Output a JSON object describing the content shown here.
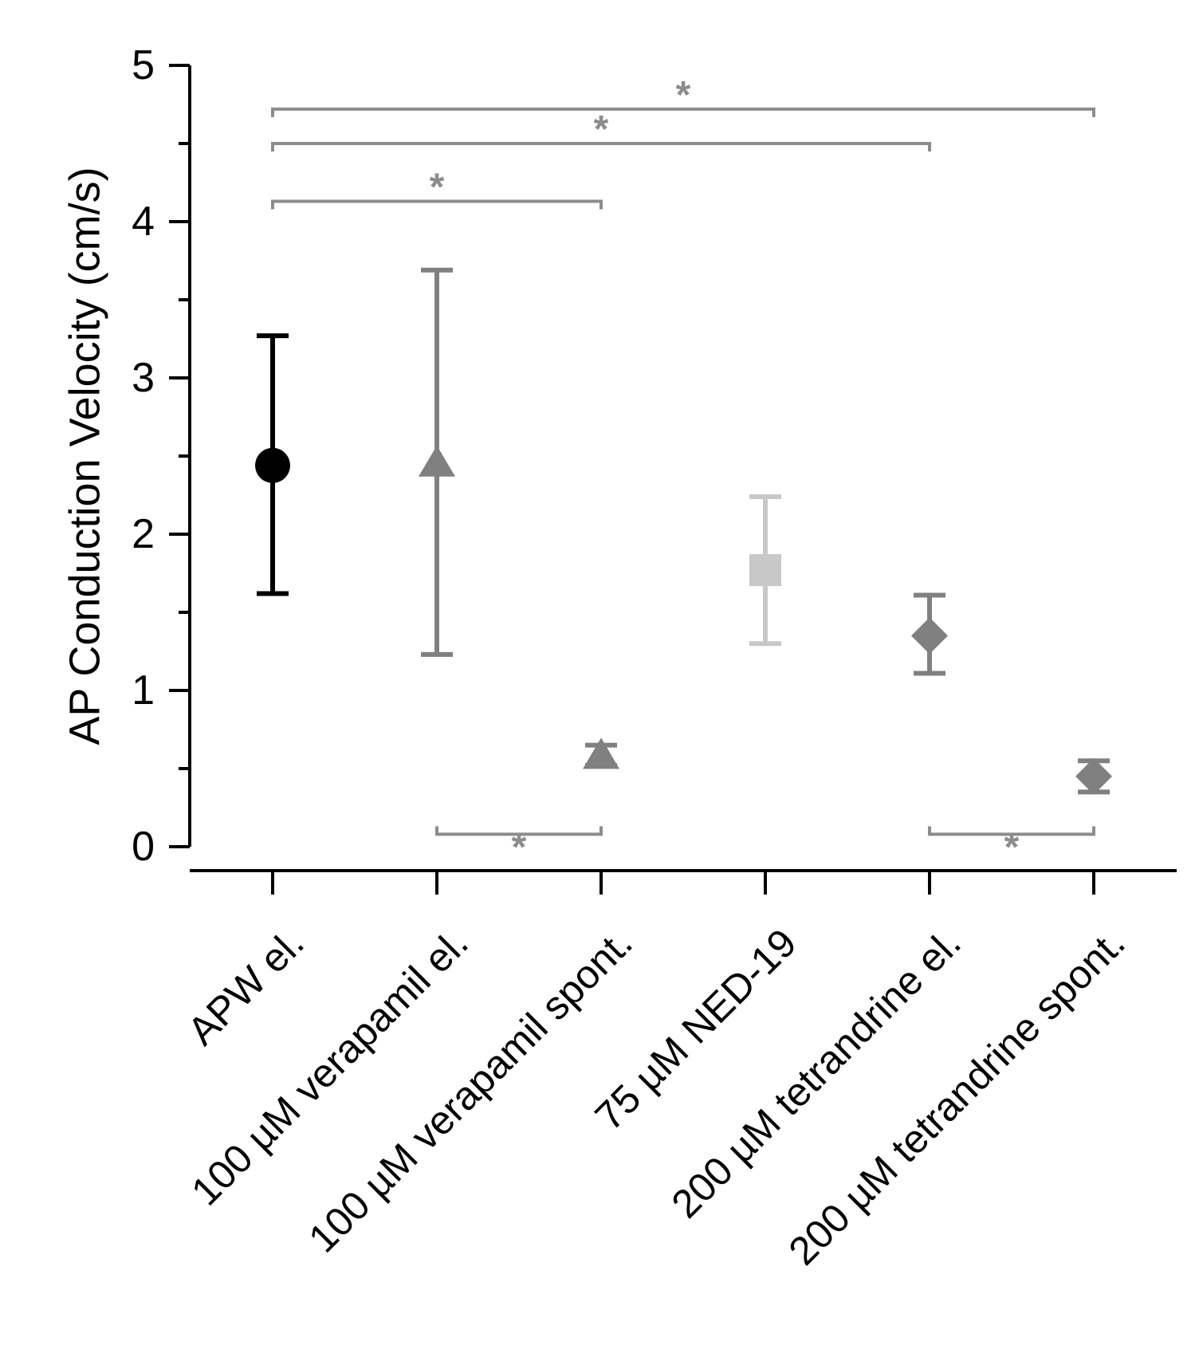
{
  "chart_data": {
    "type": "scatter",
    "title": "",
    "xlabel": "",
    "ylabel": "AP Conduction Velocity (cm/s)",
    "ylim": [
      0,
      5
    ],
    "yticks": [
      "0",
      "1",
      "2",
      "3",
      "4",
      "5"
    ],
    "grid": false,
    "legend": "none",
    "categories": [
      "APW el.",
      "100 µM verapamil el.",
      "100 µM verapamil spont.",
      "75 µM NED-19",
      "200 µM tetrandrine el.",
      "200 µM tetrandrine spont."
    ],
    "series": [
      {
        "name": "APW el.",
        "marker": "circle",
        "color": "#000000",
        "mean": 2.44,
        "lower": 1.62,
        "upper": 3.27
      },
      {
        "name": "100 µM verapamil el.",
        "marker": "triangle",
        "color": "#808080",
        "mean": 2.45,
        "lower": 1.23,
        "upper": 3.69
      },
      {
        "name": "100 µM verapamil spont.",
        "marker": "triangle",
        "color": "#808080",
        "mean": 0.58,
        "lower": 0.52,
        "upper": 0.65
      },
      {
        "name": "75 µM NED-19",
        "marker": "square",
        "color": "#c8c8c8",
        "mean": 1.77,
        "lower": 1.3,
        "upper": 2.24
      },
      {
        "name": "200 µM tetrandrine el.",
        "marker": "diamond",
        "color": "#808080",
        "mean": 1.35,
        "lower": 1.11,
        "upper": 1.61
      },
      {
        "name": "200 µM tetrandrine spont.",
        "marker": "diamond",
        "color": "#808080",
        "mean": 0.45,
        "lower": 0.35,
        "upper": 0.55
      }
    ],
    "significance": [
      {
        "from": 0,
        "to": 2,
        "level": 4.13,
        "side": "top",
        "label": "*"
      },
      {
        "from": 0,
        "to": 4,
        "level": 4.5,
        "side": "top",
        "label": "*"
      },
      {
        "from": 0,
        "to": 5,
        "level": 4.72,
        "side": "top",
        "label": "*"
      },
      {
        "from": 1,
        "to": 2,
        "level": 0.08,
        "side": "bottom",
        "label": "*"
      },
      {
        "from": 4,
        "to": 5,
        "level": 0.08,
        "side": "bottom",
        "label": "*"
      }
    ],
    "colors": {
      "axis": "#000000",
      "bracket": "#8c8c8c"
    }
  }
}
